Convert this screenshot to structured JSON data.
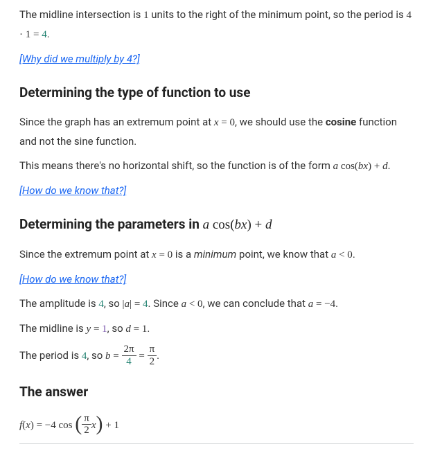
{
  "p1": {
    "t1": "The midline intersection is ",
    "one": "1",
    "t2": " units to the right of the minimum point, so the period is ",
    "expr_a": "4 · 1 = ",
    "expr_res": "4",
    "t3": "."
  },
  "link1": "[Why did we multiply by 4?]",
  "h1": "Determining the type of function to use",
  "p2": {
    "t1": "Since the graph has an extremum point at ",
    "eq": "x = 0",
    "t2": ", we should use the ",
    "cos": "cosine",
    "t3": " function and not the sine function."
  },
  "p3": {
    "t1": "This means there's no horizontal shift, so the function is of the form ",
    "eq": "a cos(bx) + d",
    "t2": "."
  },
  "link2": "[How do we know that?]",
  "h2_a": "Determining the parameters in ",
  "h2_b": "a cos(bx) + d",
  "p4": {
    "t1": "Since the extremum point at ",
    "eq": "x = 0",
    "t2": " is a ",
    "min": "minimum",
    "t3": " point, we know that ",
    "ineq": "a < 0",
    "t4": "."
  },
  "link3": "[How do we know that?]",
  "p5": {
    "t1": "The amplitude is ",
    "amp": "4",
    "t2": ", so ",
    "abs": "|a| = ",
    "absr": "4",
    "t3": ". Since ",
    "ineq": "a < 0",
    "t4": ", we can conclude that ",
    "res": "a = −4",
    "t5": "."
  },
  "p6": {
    "t1": "The midline is ",
    "y": "y",
    "eq1": " = ",
    "one": "1",
    "t2": ", so ",
    "d": "d = 1",
    "t3": "."
  },
  "p7": {
    "t1": "The period is ",
    "per": "4",
    "t2": ", so ",
    "b": "b",
    "eq": " = ",
    "f1n": "2π",
    "f1d": "4",
    "eq2": " = ",
    "f2n": "π",
    "f2d": "2",
    "t3": "."
  },
  "h3": "The answer",
  "ans": {
    "lhs": "f(x) = −4 cos",
    "lp": "(",
    "fn": "π",
    "fd": "2",
    "x": "x",
    "rp": ")",
    "tail": " + 1"
  }
}
